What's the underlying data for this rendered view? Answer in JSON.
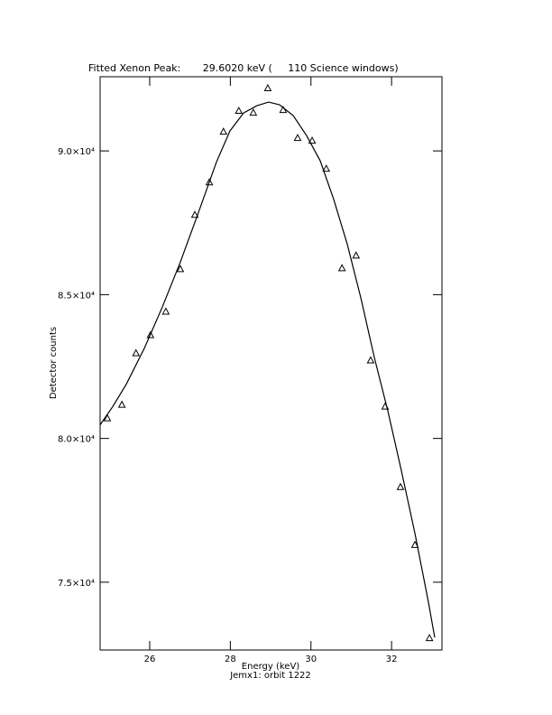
{
  "chart_data": {
    "type": "scatter",
    "title": "Fitted Xenon Peak:       29.6020 keV (     110 Science windows)",
    "x_label": "Energy (keV)",
    "subtitle": "Jemx1: orbit 1222",
    "y_label": "Detector counts",
    "xlim": [
      24.77,
      33.25
    ],
    "ylim": [
      72642,
      92579
    ],
    "xticks": [
      26,
      28,
      30,
      32
    ],
    "yticks": [
      {
        "value": 75000,
        "label": "7.5×10⁴"
      },
      {
        "value": 80000,
        "label": "8.0×10⁴"
      },
      {
        "value": 85000,
        "label": "8.5×10⁴"
      },
      {
        "value": 90000,
        "label": "9.0×10⁴"
      }
    ],
    "color": "#000000",
    "series": [
      {
        "type": "scatter",
        "x": [
          24.95,
          25.31,
          25.66,
          26.02,
          26.4,
          26.76,
          27.12,
          27.48,
          27.83,
          28.21,
          28.57,
          28.93,
          29.31,
          29.67,
          30.03,
          30.38,
          30.77,
          31.12,
          31.48,
          31.84,
          32.22,
          32.58,
          32.94
        ],
        "values": [
          80691,
          81163,
          82955,
          83584,
          84402,
          85880,
          87767,
          88899,
          90660,
          91384,
          91321,
          92170,
          91415,
          90440,
          90346,
          89371,
          85912,
          86352,
          82704,
          81100,
          78301,
          76288,
          73048
        ]
      },
      {
        "type": "line",
        "x": [
          24.77,
          25.08,
          25.42,
          25.87,
          26.31,
          26.76,
          27.21,
          27.65,
          27.99,
          28.33,
          28.66,
          28.95,
          29.22,
          29.56,
          29.89,
          30.23,
          30.56,
          30.9,
          31.24,
          31.57,
          31.91,
          32.24,
          32.58,
          32.91,
          33.07
        ],
        "values": [
          80471,
          81100,
          81886,
          83144,
          84559,
          86132,
          87861,
          89591,
          90692,
          91321,
          91573,
          91698,
          91604,
          91227,
          90535,
          89654,
          88333,
          86761,
          84874,
          82829,
          80942,
          78898,
          76696,
          74338,
          73080
        ]
      }
    ]
  }
}
